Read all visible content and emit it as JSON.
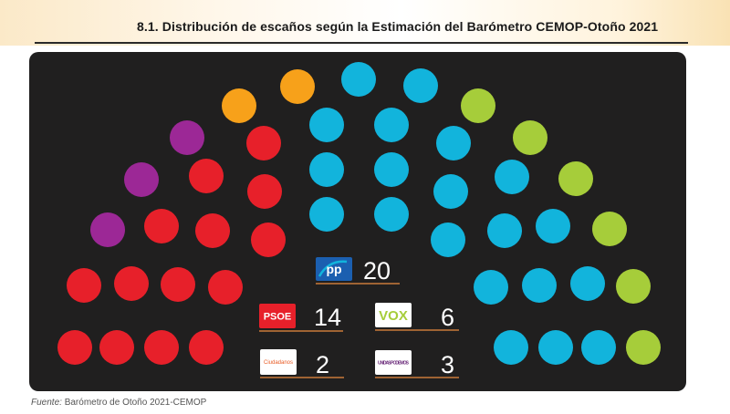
{
  "title": "8.1. Distribución de escaños según la Estimación del Barómetro CEMOP-Otoño 2021",
  "source": {
    "label": "Fuente:",
    "text": "Barómetro de Otoño 2021-CEMOP"
  },
  "colors": {
    "panel": "#201f1f",
    "rule": "#c97a3a",
    "pp": "#12b4dc",
    "psoe": "#e7202a",
    "vox": "#a6cd3a",
    "podemos": "#9c2896",
    "ciudadanos": "#f7a11a"
  },
  "chart_data": {
    "type": "parliament",
    "total_seats": 45,
    "parties": [
      {
        "id": "pp",
        "logo_text": "PP",
        "seats": 20
      },
      {
        "id": "psoe",
        "logo_text": "PSOE",
        "seats": 14
      },
      {
        "id": "vox",
        "logo_text": "VOX",
        "seats": 6
      },
      {
        "id": "ciudadanos",
        "logo_text": "Ciudadanos",
        "seats": 2
      },
      {
        "id": "podemos",
        "logo_text": "UNIDAS PODEMOS",
        "seats": 3
      }
    ]
  }
}
